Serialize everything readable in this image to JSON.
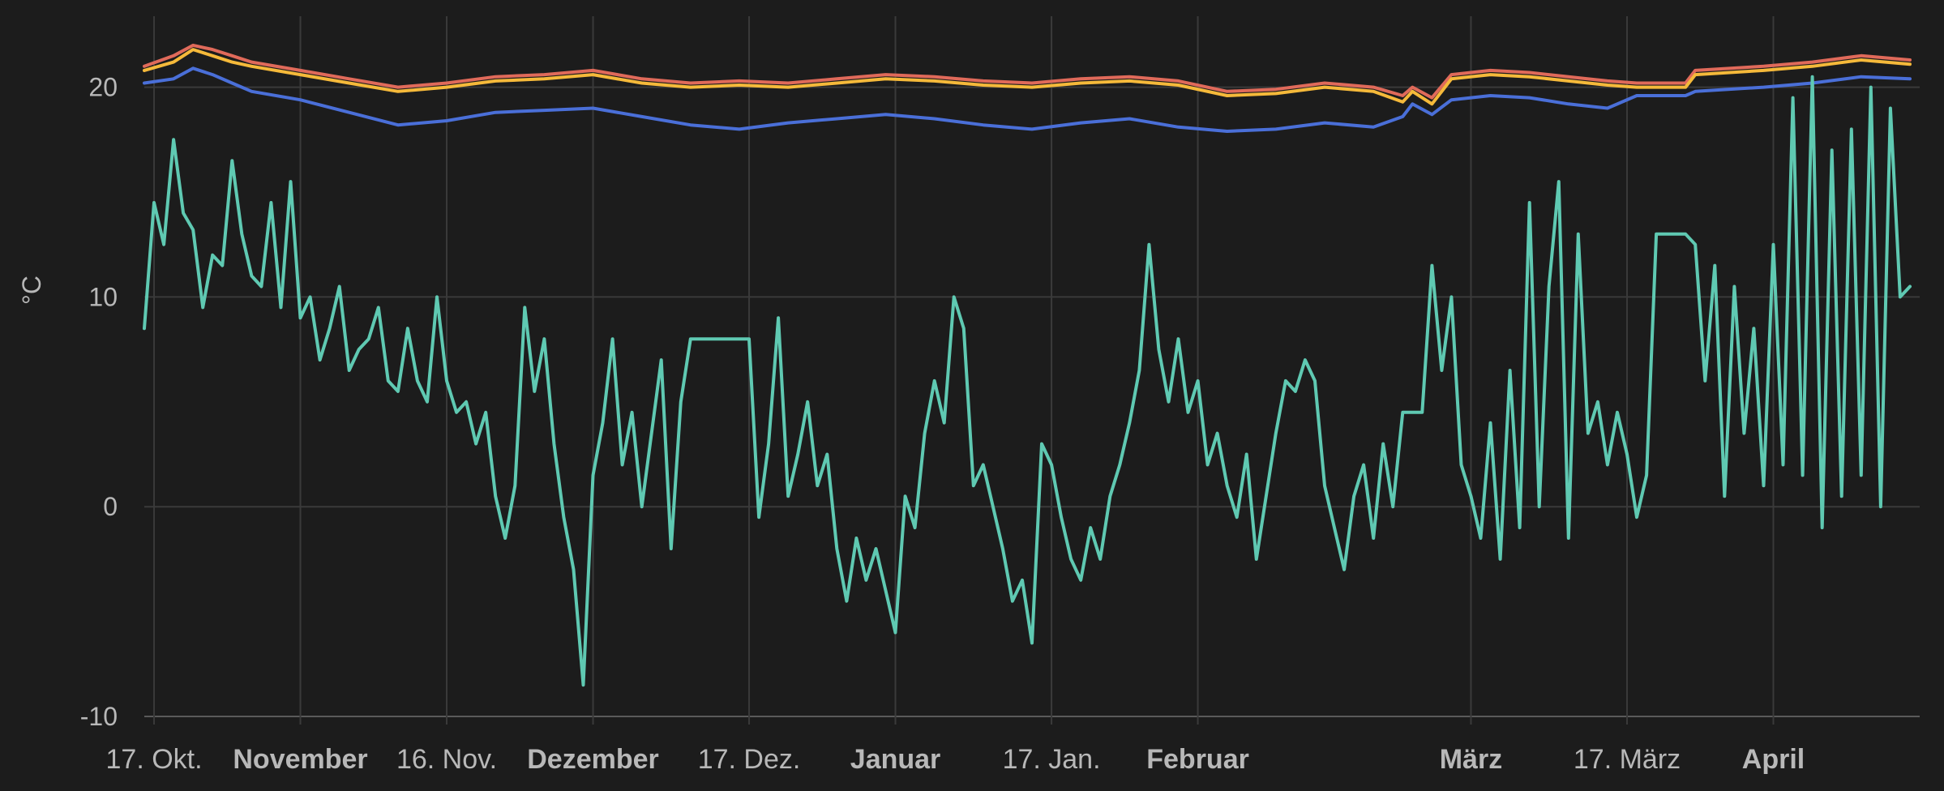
{
  "chart_data": {
    "type": "line",
    "ylabel": "°C",
    "ylim": [
      -10,
      23
    ],
    "yticks": [
      {
        "value": 20,
        "label": "20"
      },
      {
        "value": 10,
        "label": "10"
      },
      {
        "value": 0,
        "label": "0"
      },
      {
        "value": -10,
        "label": "-10"
      }
    ],
    "xlim_days": [
      -1,
      181
    ],
    "xticks": [
      {
        "day": 0,
        "label": "17. Okt.",
        "bold": false
      },
      {
        "day": 15,
        "label": "November",
        "bold": true
      },
      {
        "day": 30,
        "label": "16. Nov.",
        "bold": false
      },
      {
        "day": 45,
        "label": "Dezember",
        "bold": true
      },
      {
        "day": 61,
        "label": "17. Dez.",
        "bold": false
      },
      {
        "day": 76,
        "label": "Januar",
        "bold": true
      },
      {
        "day": 92,
        "label": "17. Jan.",
        "bold": false
      },
      {
        "day": 107,
        "label": "Februar",
        "bold": true
      },
      {
        "day": 135,
        "label": "März",
        "bold": true
      },
      {
        "day": 151,
        "label": "17. März",
        "bold": false
      },
      {
        "day": 166,
        "label": "April",
        "bold": true
      }
    ],
    "grid": true,
    "legend": "none",
    "series": [
      {
        "color": "#e06a5a",
        "points": [
          [
            -1,
            21.0
          ],
          [
            2,
            21.5
          ],
          [
            4,
            22.0
          ],
          [
            6,
            21.8
          ],
          [
            8,
            21.5
          ],
          [
            10,
            21.2
          ],
          [
            15,
            20.8
          ],
          [
            20,
            20.4
          ],
          [
            25,
            20.0
          ],
          [
            30,
            20.2
          ],
          [
            35,
            20.5
          ],
          [
            40,
            20.6
          ],
          [
            45,
            20.8
          ],
          [
            50,
            20.4
          ],
          [
            55,
            20.2
          ],
          [
            60,
            20.3
          ],
          [
            65,
            20.2
          ],
          [
            70,
            20.4
          ],
          [
            75,
            20.6
          ],
          [
            80,
            20.5
          ],
          [
            85,
            20.3
          ],
          [
            90,
            20.2
          ],
          [
            95,
            20.4
          ],
          [
            100,
            20.5
          ],
          [
            105,
            20.3
          ],
          [
            110,
            19.8
          ],
          [
            115,
            19.9
          ],
          [
            120,
            20.2
          ],
          [
            125,
            20.0
          ],
          [
            128,
            19.6
          ],
          [
            129,
            20.0
          ],
          [
            131,
            19.5
          ],
          [
            133,
            20.6
          ],
          [
            137,
            20.8
          ],
          [
            141,
            20.7
          ],
          [
            145,
            20.5
          ],
          [
            149,
            20.3
          ],
          [
            152,
            20.2
          ],
          [
            157,
            20.2
          ],
          [
            158,
            20.8
          ],
          [
            165,
            21.0
          ],
          [
            170,
            21.2
          ],
          [
            175,
            21.5
          ],
          [
            180,
            21.3
          ]
        ]
      },
      {
        "color": "#f5b93a",
        "points": [
          [
            -1,
            20.8
          ],
          [
            2,
            21.2
          ],
          [
            4,
            21.8
          ],
          [
            6,
            21.5
          ],
          [
            8,
            21.2
          ],
          [
            10,
            21.0
          ],
          [
            15,
            20.6
          ],
          [
            20,
            20.2
          ],
          [
            25,
            19.8
          ],
          [
            30,
            20.0
          ],
          [
            35,
            20.3
          ],
          [
            40,
            20.4
          ],
          [
            45,
            20.6
          ],
          [
            50,
            20.2
          ],
          [
            55,
            20.0
          ],
          [
            60,
            20.1
          ],
          [
            65,
            20.0
          ],
          [
            70,
            20.2
          ],
          [
            75,
            20.4
          ],
          [
            80,
            20.3
          ],
          [
            85,
            20.1
          ],
          [
            90,
            20.0
          ],
          [
            95,
            20.2
          ],
          [
            100,
            20.3
          ],
          [
            105,
            20.1
          ],
          [
            110,
            19.6
          ],
          [
            115,
            19.7
          ],
          [
            120,
            20.0
          ],
          [
            125,
            19.8
          ],
          [
            128,
            19.3
          ],
          [
            129,
            19.8
          ],
          [
            131,
            19.2
          ],
          [
            133,
            20.4
          ],
          [
            137,
            20.6
          ],
          [
            141,
            20.5
          ],
          [
            145,
            20.3
          ],
          [
            149,
            20.1
          ],
          [
            152,
            20.0
          ],
          [
            157,
            20.0
          ],
          [
            158,
            20.6
          ],
          [
            165,
            20.8
          ],
          [
            170,
            21.0
          ],
          [
            175,
            21.3
          ],
          [
            180,
            21.1
          ]
        ]
      },
      {
        "color": "#4a6fd8",
        "points": [
          [
            -1,
            20.2
          ],
          [
            2,
            20.4
          ],
          [
            4,
            20.9
          ],
          [
            6,
            20.6
          ],
          [
            8,
            20.2
          ],
          [
            10,
            19.8
          ],
          [
            15,
            19.4
          ],
          [
            20,
            18.8
          ],
          [
            25,
            18.2
          ],
          [
            30,
            18.4
          ],
          [
            35,
            18.8
          ],
          [
            40,
            18.9
          ],
          [
            45,
            19.0
          ],
          [
            50,
            18.6
          ],
          [
            55,
            18.2
          ],
          [
            60,
            18.0
          ],
          [
            65,
            18.3
          ],
          [
            70,
            18.5
          ],
          [
            75,
            18.7
          ],
          [
            80,
            18.5
          ],
          [
            85,
            18.2
          ],
          [
            90,
            18.0
          ],
          [
            95,
            18.3
          ],
          [
            100,
            18.5
          ],
          [
            105,
            18.1
          ],
          [
            110,
            17.9
          ],
          [
            115,
            18.0
          ],
          [
            120,
            18.3
          ],
          [
            125,
            18.1
          ],
          [
            128,
            18.6
          ],
          [
            129,
            19.2
          ],
          [
            131,
            18.7
          ],
          [
            133,
            19.4
          ],
          [
            137,
            19.6
          ],
          [
            141,
            19.5
          ],
          [
            145,
            19.2
          ],
          [
            149,
            19.0
          ],
          [
            152,
            19.6
          ],
          [
            157,
            19.6
          ],
          [
            158,
            19.8
          ],
          [
            165,
            20.0
          ],
          [
            170,
            20.2
          ],
          [
            175,
            20.5
          ],
          [
            180,
            20.4
          ]
        ]
      },
      {
        "color": "#5fc9b2",
        "points": [
          [
            -1,
            8.5
          ],
          [
            0,
            14.5
          ],
          [
            1,
            12.5
          ],
          [
            2,
            17.5
          ],
          [
            3,
            14.0
          ],
          [
            4,
            13.2
          ],
          [
            5,
            9.5
          ],
          [
            6,
            12.0
          ],
          [
            7,
            11.5
          ],
          [
            8,
            16.5
          ],
          [
            9,
            13.0
          ],
          [
            10,
            11.0
          ],
          [
            11,
            10.5
          ],
          [
            12,
            14.5
          ],
          [
            13,
            9.5
          ],
          [
            14,
            15.5
          ],
          [
            15,
            9.0
          ],
          [
            16,
            10.0
          ],
          [
            17,
            7.0
          ],
          [
            18,
            8.5
          ],
          [
            19,
            10.5
          ],
          [
            20,
            6.5
          ],
          [
            21,
            7.5
          ],
          [
            22,
            8.0
          ],
          [
            23,
            9.5
          ],
          [
            24,
            6.0
          ],
          [
            25,
            5.5
          ],
          [
            26,
            8.5
          ],
          [
            27,
            6.0
          ],
          [
            28,
            5.0
          ],
          [
            29,
            10.0
          ],
          [
            30,
            6.0
          ],
          [
            31,
            4.5
          ],
          [
            32,
            5.0
          ],
          [
            33,
            3.0
          ],
          [
            34,
            4.5
          ],
          [
            35,
            0.5
          ],
          [
            36,
            -1.5
          ],
          [
            37,
            1.0
          ],
          [
            38,
            9.5
          ],
          [
            39,
            5.5
          ],
          [
            40,
            8.0
          ],
          [
            41,
            3.0
          ],
          [
            42,
            -0.5
          ],
          [
            43,
            -3.0
          ],
          [
            44,
            -8.5
          ],
          [
            45,
            1.5
          ],
          [
            46,
            4.0
          ],
          [
            47,
            8.0
          ],
          [
            48,
            2.0
          ],
          [
            49,
            4.5
          ],
          [
            50,
            0.0
          ],
          [
            51,
            3.5
          ],
          [
            52,
            7.0
          ],
          [
            53,
            -2.0
          ],
          [
            54,
            5.0
          ],
          [
            55,
            8.0
          ],
          [
            56,
            8.0
          ],
          [
            60,
            8.0
          ],
          [
            61,
            8.0
          ],
          [
            62,
            -0.5
          ],
          [
            63,
            3.0
          ],
          [
            64,
            9.0
          ],
          [
            65,
            0.5
          ],
          [
            66,
            2.5
          ],
          [
            67,
            5.0
          ],
          [
            68,
            1.0
          ],
          [
            69,
            2.5
          ],
          [
            70,
            -2.0
          ],
          [
            71,
            -4.5
          ],
          [
            72,
            -1.5
          ],
          [
            73,
            -3.5
          ],
          [
            74,
            -2.0
          ],
          [
            75,
            -4.0
          ],
          [
            76,
            -6.0
          ],
          [
            77,
            0.5
          ],
          [
            78,
            -1.0
          ],
          [
            79,
            3.5
          ],
          [
            80,
            6.0
          ],
          [
            81,
            4.0
          ],
          [
            82,
            10.0
          ],
          [
            83,
            8.5
          ],
          [
            84,
            1.0
          ],
          [
            85,
            2.0
          ],
          [
            86,
            0.0
          ],
          [
            87,
            -2.0
          ],
          [
            88,
            -4.5
          ],
          [
            89,
            -3.5
          ],
          [
            90,
            -6.5
          ],
          [
            91,
            3.0
          ],
          [
            92,
            2.0
          ],
          [
            93,
            -0.5
          ],
          [
            94,
            -2.5
          ],
          [
            95,
            -3.5
          ],
          [
            96,
            -1.0
          ],
          [
            97,
            -2.5
          ],
          [
            98,
            0.5
          ],
          [
            99,
            2.0
          ],
          [
            100,
            4.0
          ],
          [
            101,
            6.5
          ],
          [
            102,
            12.5
          ],
          [
            103,
            7.5
          ],
          [
            104,
            5.0
          ],
          [
            105,
            8.0
          ],
          [
            106,
            4.5
          ],
          [
            107,
            6.0
          ],
          [
            108,
            2.0
          ],
          [
            109,
            3.5
          ],
          [
            110,
            1.0
          ],
          [
            111,
            -0.5
          ],
          [
            112,
            2.5
          ],
          [
            113,
            -2.5
          ],
          [
            114,
            0.5
          ],
          [
            115,
            3.5
          ],
          [
            116,
            6.0
          ],
          [
            117,
            5.5
          ],
          [
            118,
            7.0
          ],
          [
            119,
            6.0
          ],
          [
            120,
            1.0
          ],
          [
            121,
            -1.0
          ],
          [
            122,
            -3.0
          ],
          [
            123,
            0.5
          ],
          [
            124,
            2.0
          ],
          [
            125,
            -1.5
          ],
          [
            126,
            3.0
          ],
          [
            127,
            0.0
          ],
          [
            128,
            4.5
          ],
          [
            129,
            4.5
          ],
          [
            130,
            4.5
          ],
          [
            131,
            11.5
          ],
          [
            132,
            6.5
          ],
          [
            133,
            10.0
          ],
          [
            134,
            2.0
          ],
          [
            135,
            0.5
          ],
          [
            136,
            -1.5
          ],
          [
            137,
            4.0
          ],
          [
            138,
            -2.5
          ],
          [
            139,
            6.5
          ],
          [
            140,
            -1.0
          ],
          [
            141,
            14.5
          ],
          [
            142,
            0.0
          ],
          [
            143,
            10.5
          ],
          [
            144,
            15.5
          ],
          [
            145,
            -1.5
          ],
          [
            146,
            13.0
          ],
          [
            147,
            3.5
          ],
          [
            148,
            5.0
          ],
          [
            149,
            2.0
          ],
          [
            150,
            4.5
          ],
          [
            151,
            2.5
          ],
          [
            152,
            -0.5
          ],
          [
            153,
            1.5
          ],
          [
            154,
            13.0
          ],
          [
            155,
            13.0
          ],
          [
            156,
            13.0
          ],
          [
            157,
            13.0
          ],
          [
            158,
            12.5
          ],
          [
            159,
            6.0
          ],
          [
            160,
            11.5
          ],
          [
            161,
            0.5
          ],
          [
            162,
            10.5
          ],
          [
            163,
            3.5
          ],
          [
            164,
            8.5
          ],
          [
            165,
            1.0
          ],
          [
            166,
            12.5
          ],
          [
            167,
            2.0
          ],
          [
            168,
            19.5
          ],
          [
            169,
            1.5
          ],
          [
            170,
            20.5
          ],
          [
            171,
            -1.0
          ],
          [
            172,
            17.0
          ],
          [
            173,
            0.5
          ],
          [
            174,
            18.0
          ],
          [
            175,
            1.5
          ],
          [
            176,
            20.0
          ],
          [
            177,
            0.0
          ],
          [
            178,
            19.0
          ],
          [
            179,
            10.0
          ],
          [
            180,
            10.5
          ]
        ]
      }
    ]
  }
}
